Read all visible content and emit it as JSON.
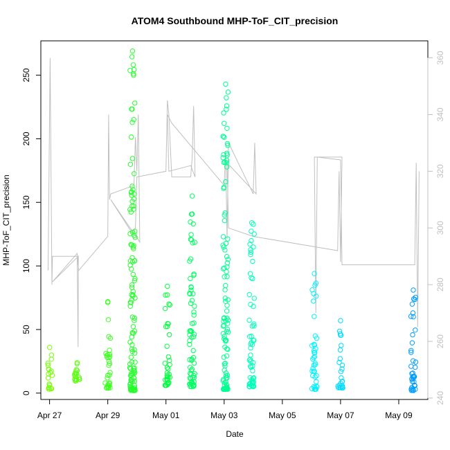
{
  "chart_data": {
    "type": "scatter",
    "title": "ATOM4 Southbound MHP-ToF_CIT_precision",
    "xlabel": "Date",
    "ylabel": "MHP-ToF_CIT_precision",
    "xlim_days": [
      -0.3,
      13.0
    ],
    "ylim": [
      -5,
      277
    ],
    "y2lim": [
      239.5,
      366
    ],
    "xticks": [
      {
        "label": "Apr 27",
        "day": 0
      },
      {
        "label": "Apr 29",
        "day": 2
      },
      {
        "label": "May 01",
        "day": 4
      },
      {
        "label": "May 03",
        "day": 6
      },
      {
        "label": "May 05",
        "day": 8
      },
      {
        "label": "May 07",
        "day": 10
      },
      {
        "label": "May 09",
        "day": 12
      }
    ],
    "yticks": [
      0,
      50,
      100,
      150,
      200,
      250
    ],
    "y2ticks": [
      240,
      260,
      280,
      300,
      320,
      340,
      360
    ],
    "series": [
      {
        "name": "precision points",
        "color_scale": [
          "#80ff00",
          "#00ff40",
          "#00ffff",
          "#0090ff"
        ],
        "clusters": [
          {
            "day": 0.0,
            "y_min": 3,
            "y_max": 36
          },
          {
            "day": 0.95,
            "y_min": 9,
            "y_max": 24
          },
          {
            "day": 2.0,
            "y_min": 4,
            "y_max": 72
          },
          {
            "day": 2.85,
            "y_min": 2,
            "y_max": 269
          },
          {
            "day": 4.05,
            "y_min": 6,
            "y_max": 84
          },
          {
            "day": 4.9,
            "y_min": 5,
            "y_max": 155
          },
          {
            "day": 6.05,
            "y_min": 3,
            "y_max": 243
          },
          {
            "day": 6.95,
            "y_min": 5,
            "y_max": 134
          },
          {
            "day": 9.1,
            "y_min": 3,
            "y_max": 94
          },
          {
            "day": 10.0,
            "y_min": 4,
            "y_max": 57
          },
          {
            "day": 12.5,
            "y_min": 2,
            "y_max": 81
          }
        ]
      },
      {
        "name": "secondary gray line",
        "axis": "right",
        "color": "#c0c0c0",
        "points": [
          [
            -0.05,
            285
          ],
          [
            0.02,
            360
          ],
          [
            0.08,
            280
          ],
          [
            0.1,
            290
          ],
          [
            0.95,
            290
          ],
          [
            0.98,
            258
          ],
          [
            0.99,
            290
          ],
          [
            0.1,
            281
          ],
          [
            0.95,
            291
          ],
          [
            1.0,
            285
          ],
          [
            2.0,
            297
          ],
          [
            2.03,
            340
          ],
          [
            2.06,
            310
          ],
          [
            2.1,
            312
          ],
          [
            2.9,
            315
          ],
          [
            2.95,
            332
          ],
          [
            3.0,
            320
          ],
          [
            3.05,
            340
          ],
          [
            3.1,
            295
          ],
          [
            2.1,
            310
          ],
          [
            2.85,
            298
          ],
          [
            2.95,
            300
          ],
          [
            3.0,
            318
          ],
          [
            4.0,
            320
          ],
          [
            4.05,
            345
          ],
          [
            4.1,
            340
          ],
          [
            4.2,
            318
          ],
          [
            4.3,
            318
          ],
          [
            4.85,
            318
          ],
          [
            4.9,
            325
          ],
          [
            4.95,
            343
          ],
          [
            5.0,
            318
          ],
          [
            4.85,
            322
          ],
          [
            4.1,
            320
          ],
          [
            4.05,
            340
          ],
          [
            4.2,
            337
          ],
          [
            6.0,
            315
          ],
          [
            6.05,
            327
          ],
          [
            6.1,
            296
          ],
          [
            6.15,
            330
          ],
          [
            7.0,
            312
          ],
          [
            7.05,
            330
          ],
          [
            7.1,
            312
          ],
          [
            6.1,
            323
          ],
          [
            6.15,
            300
          ],
          [
            7.0,
            297
          ],
          [
            9.9,
            292
          ],
          [
            9.95,
            320
          ],
          [
            10.0,
            288
          ],
          [
            10.05,
            325
          ],
          [
            9.1,
            325
          ],
          [
            9.15,
            270
          ],
          [
            9.2,
            325
          ],
          [
            10.0,
            324
          ],
          [
            10.05,
            287
          ],
          [
            12.55,
            287
          ],
          [
            12.6,
            323
          ],
          [
            12.65,
            265
          ],
          [
            12.7,
            320
          ]
        ]
      }
    ]
  }
}
